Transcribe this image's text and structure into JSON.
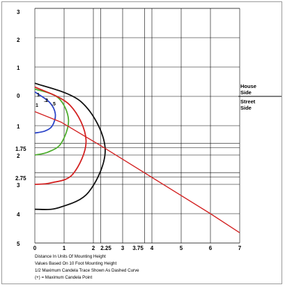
{
  "chart_data": {
    "type": "line",
    "x_ticks": [
      "0",
      "1",
      "2",
      "2.25",
      "3",
      "3.75",
      "4",
      "5",
      "6",
      "7"
    ],
    "y_ticks_top": [
      "3",
      "2",
      "1",
      "0"
    ],
    "y_ticks_bottom": [
      "1",
      "1.75",
      "2",
      "2.75",
      "3",
      "4",
      "5"
    ],
    "house_side_label": [
      "House",
      "Side"
    ],
    "street_side_label": [
      "Street",
      "Side"
    ],
    "contour_labels": [
      "1",
      ".2",
      ".5",
      "1"
    ],
    "notes": [
      "Distance In Units Of Mounting Height",
      "Values Based On 10 Foot Mounting Height",
      "1/2 Maximum Candela Trace Shown As Dashed Curve",
      "(+) = Maximum Candela Point"
    ],
    "series": [
      {
        "color": "#2b44c8",
        "values": [
          [
            0,
            -0.15
          ],
          [
            0.5,
            0.2
          ],
          [
            0.7,
            0.6
          ],
          [
            0.6,
            1.0
          ],
          [
            0.35,
            1.18
          ],
          [
            0,
            1.25
          ]
        ]
      },
      {
        "color": "#4fae2f",
        "values": [
          [
            0,
            -0.25
          ],
          [
            0.8,
            0.05
          ],
          [
            1.15,
            0.8
          ],
          [
            0.9,
            1.6
          ],
          [
            0.45,
            1.9
          ],
          [
            0,
            2.0
          ]
        ]
      },
      {
        "color": "#d32222",
        "values": [
          [
            0,
            -0.32
          ],
          [
            1.2,
            0.3
          ],
          [
            1.75,
            1.5
          ],
          [
            1.3,
            2.65
          ],
          [
            0.55,
            2.95
          ],
          [
            0,
            3.0
          ]
        ]
      },
      {
        "color": "#111111",
        "values": [
          [
            0,
            -0.45
          ],
          [
            1.6,
            0.2
          ],
          [
            2.4,
            1.75
          ],
          [
            1.85,
            3.25
          ],
          [
            0.8,
            3.8
          ],
          [
            0,
            3.85
          ]
        ]
      },
      {
        "color": "#d32222",
        "values": [
          [
            0,
            0.52
          ],
          [
            0.9,
            0.88
          ],
          [
            2.25,
            1.68
          ],
          [
            6,
            4.0
          ],
          [
            7,
            4.65
          ]
        ]
      }
    ]
  }
}
